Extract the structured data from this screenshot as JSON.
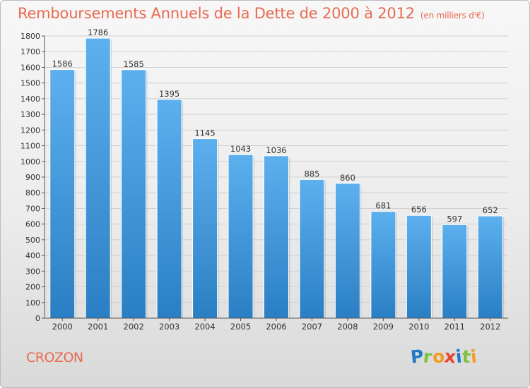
{
  "header": {
    "title": "Remboursements Annuels de la Dette de 2000 à 2012",
    "unit": "(en milliers d'€)"
  },
  "footer": {
    "commune": "CROZON",
    "logo_letters": [
      "P",
      "r",
      "o",
      "x",
      "i",
      "t",
      "i"
    ],
    "logo_colors": [
      "#1f78c8",
      "#7bc143",
      "#f39c1f",
      "#e8452c",
      "#1f78c8",
      "#7bc143",
      "#f39c1f"
    ]
  },
  "colors": {
    "bar": "#3d91d6",
    "bar_light": "#5db0ee",
    "title": "#e86a50",
    "grid": "#d0d0d0",
    "axis": "#555555"
  },
  "chart_data": {
    "type": "bar",
    "title": "Remboursements Annuels de la Dette de 2000 à 2012",
    "xlabel": "",
    "ylabel": "",
    "categories": [
      "2000",
      "2001",
      "2002",
      "2003",
      "2004",
      "2005",
      "2006",
      "2007",
      "2008",
      "2009",
      "2010",
      "2011",
      "2012"
    ],
    "values": [
      1586,
      1786,
      1585,
      1395,
      1145,
      1043,
      1036,
      885,
      860,
      681,
      656,
      597,
      652
    ],
    "ylim": [
      0,
      1800
    ],
    "yticks": [
      0,
      100,
      200,
      300,
      400,
      500,
      600,
      700,
      800,
      900,
      1000,
      1100,
      1200,
      1300,
      1400,
      1500,
      1600,
      1700,
      1800
    ],
    "grid": true
  }
}
